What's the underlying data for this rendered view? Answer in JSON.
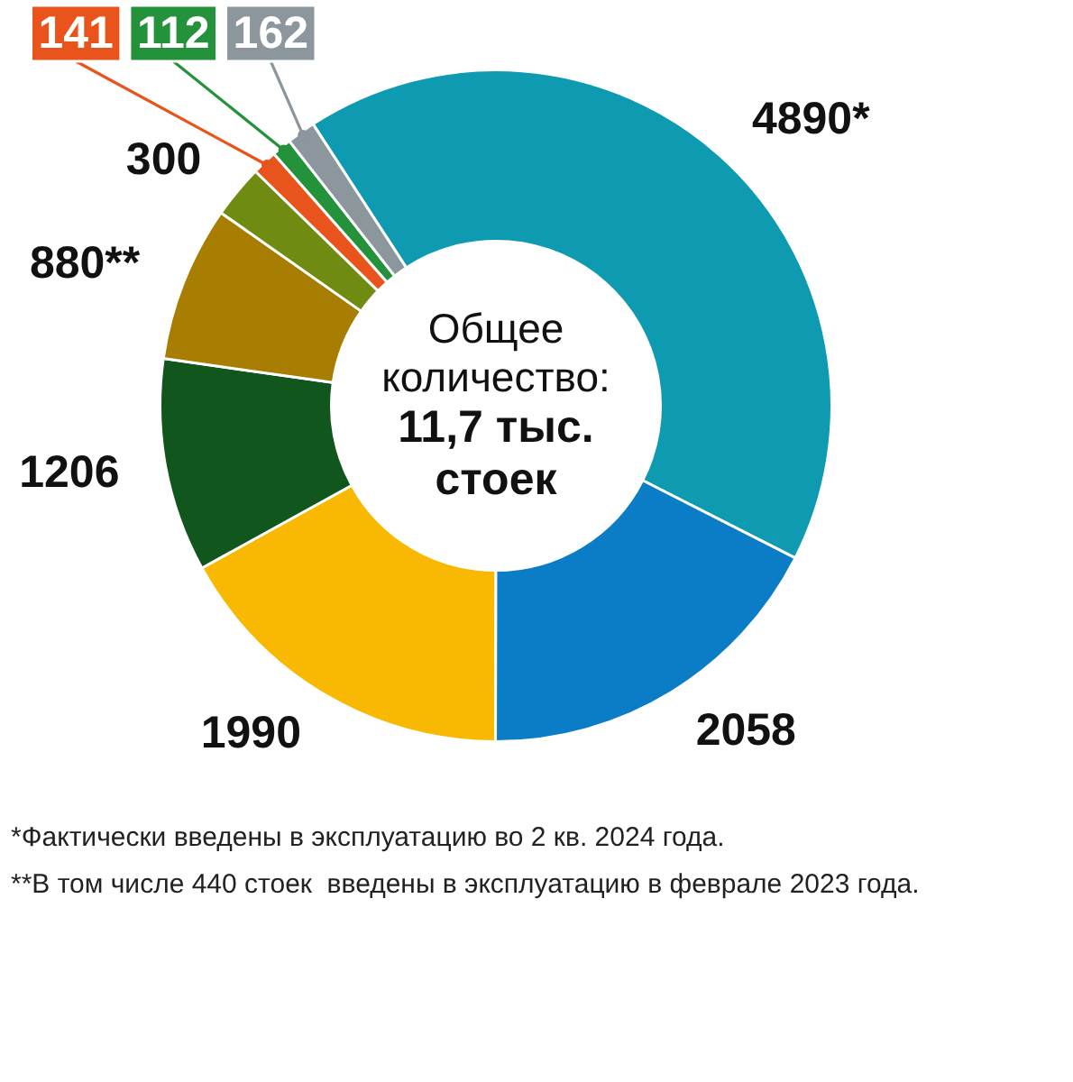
{
  "chart_data": {
    "type": "donut",
    "title": "Общее количество:",
    "subtitle": "11,7 тыс. стоек",
    "categories": [
      null,
      null,
      null,
      null,
      null,
      null,
      null,
      null,
      null
    ],
    "values": [
      4890,
      2058,
      1990,
      1206,
      880,
      300,
      141,
      112,
      162
    ],
    "colors": [
      "#0e9bb1",
      "#0a7dc6",
      "#f9b902",
      "#11561d",
      "#a77d02",
      "#6f8b12",
      "#e8541b",
      "#23923b",
      "#8b979d"
    ],
    "value_labels": [
      "4890*",
      "2058",
      "1990",
      "1206",
      "880**",
      "300",
      "141",
      "112",
      "162"
    ],
    "annotations": [
      "*Фактически введены в эксплуатацию во 2 кв. 2024 года.",
      "**В том числе 440 стоек  введены в эксплуатацию в феврале 2023 года."
    ]
  }
}
